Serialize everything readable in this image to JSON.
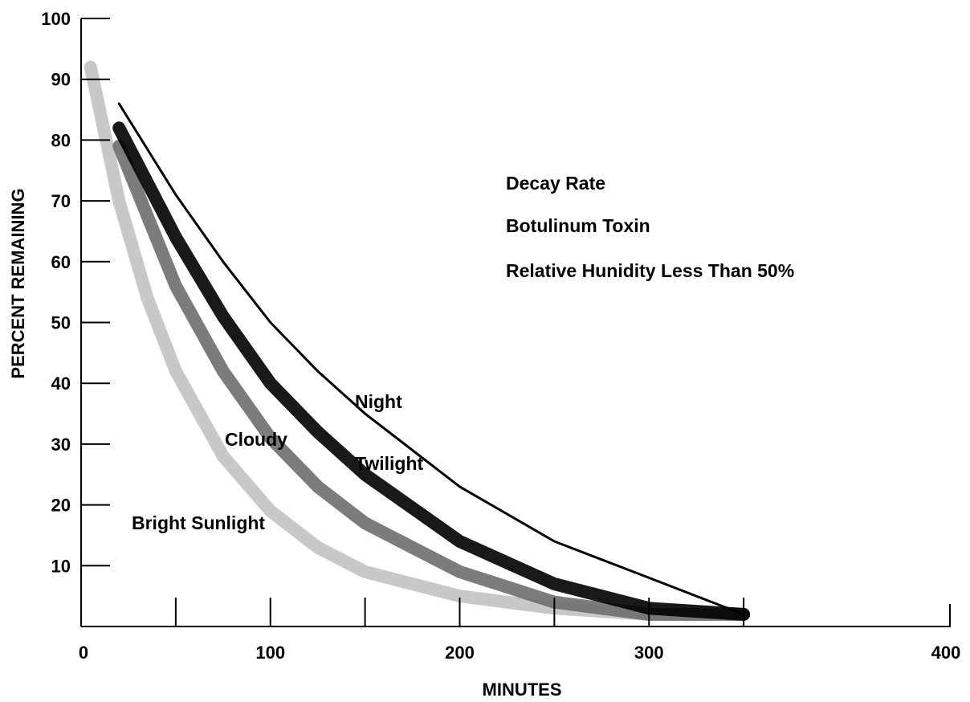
{
  "chart_data": {
    "type": "line",
    "xlabel": "MINUTES",
    "ylabel": "PERCENT REMAINING",
    "xlim": [
      0,
      400
    ],
    "ylim": [
      0,
      100
    ],
    "x_ticks": [
      0,
      100,
      200,
      300,
      400
    ],
    "x_minor_ticks": [
      50,
      150,
      250,
      350
    ],
    "y_ticks": [
      10,
      20,
      30,
      40,
      50,
      60,
      70,
      80,
      90,
      100
    ],
    "y_tick_labels": [
      "10",
      "20",
      "30",
      "40",
      "50",
      "60",
      "70",
      "80",
      "90",
      "100"
    ],
    "grid": false,
    "annotations": [
      "Decay Rate",
      "Botulinum Toxin",
      "Relative Hunidity Less Than 50%"
    ],
    "series": [
      {
        "name": "Night",
        "style": "line",
        "color": "#000000",
        "x": [
          20,
          50,
          75,
          100,
          125,
          150,
          200,
          250,
          300,
          350
        ],
        "y": [
          86,
          71,
          60,
          50,
          42,
          35,
          23,
          14,
          8,
          2
        ]
      },
      {
        "name": "Twilight",
        "style": "band",
        "color": "#000000",
        "x": [
          20,
          50,
          75,
          100,
          125,
          150,
          200,
          250,
          300,
          350
        ],
        "y": [
          82,
          64,
          51,
          40,
          32,
          25,
          14,
          7,
          3,
          2
        ]
      },
      {
        "name": "Cloudy",
        "style": "band",
        "color": "#6e6e6e",
        "x": [
          20,
          50,
          75,
          100,
          125,
          150,
          200,
          250,
          300,
          350
        ],
        "y": [
          79,
          56,
          42,
          31,
          23,
          17,
          9,
          4,
          2,
          2
        ]
      },
      {
        "name": "Bright Sunlight",
        "style": "band",
        "color": "#c2c2c2",
        "x": [
          5,
          20,
          35,
          50,
          75,
          100,
          125,
          150,
          200,
          250,
          300,
          350
        ],
        "y": [
          92,
          70,
          54,
          42,
          28,
          19,
          13,
          9,
          5,
          3,
          2,
          2
        ]
      }
    ]
  }
}
